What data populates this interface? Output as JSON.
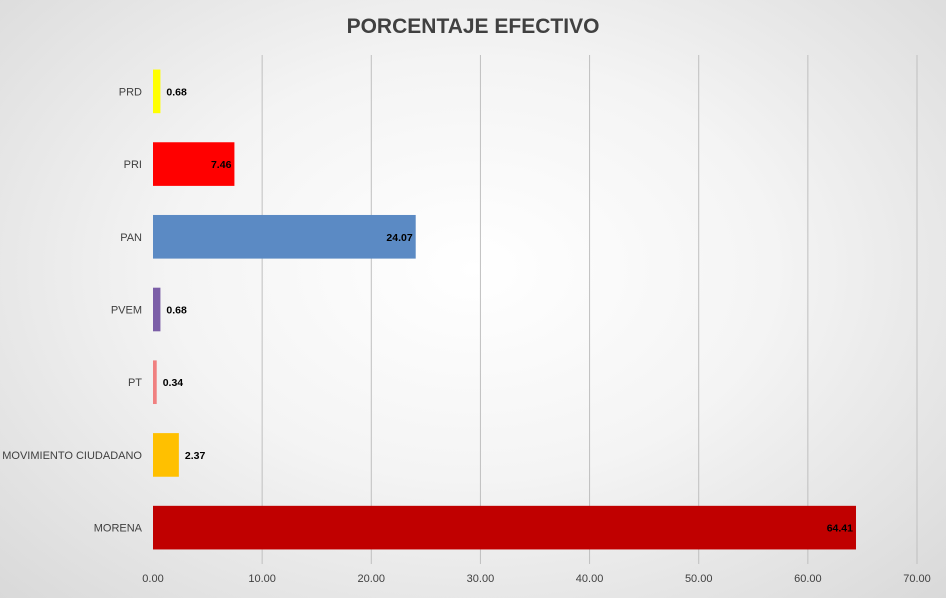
{
  "chart_data": {
    "type": "bar",
    "orientation": "horizontal",
    "title": "PORCENTAJE EFECTIVO",
    "categories": [
      "PRD",
      "PRI",
      "PAN",
      "PVEM",
      "PT",
      "MOVIMIENTO CIUDADANO",
      "MORENA"
    ],
    "values": [
      0.68,
      7.46,
      24.07,
      0.68,
      0.34,
      2.37,
      64.41
    ],
    "data_labels": [
      "0.68",
      "7.46",
      "24.07",
      "0.68",
      "0.34",
      "2.37",
      "64.41"
    ],
    "bar_colors": [
      "#ffff00",
      "#ff0000",
      "#5b8ac4",
      "#7b5ea7",
      "#f08080",
      "#ffc000",
      "#c00000"
    ],
    "xlim": [
      0,
      70
    ],
    "xticks": [
      "0.00",
      "10.00",
      "20.00",
      "30.00",
      "40.00",
      "50.00",
      "60.00",
      "70.00"
    ],
    "xlabel": "",
    "ylabel": "",
    "grid": "vertical",
    "legend": "none"
  }
}
